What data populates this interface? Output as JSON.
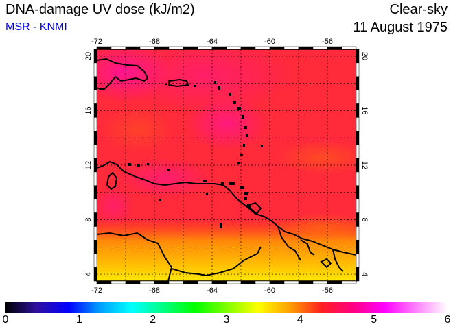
{
  "header": {
    "title": "DNA-damage UV dose (kJ/m2)",
    "source": "MSR - KNMI",
    "condition": "Clear-sky",
    "date": "11 August 1975"
  },
  "map": {
    "longitude_ticks": [
      "-72",
      "-68",
      "-64",
      "-60",
      "-56"
    ],
    "latitude_ticks": [
      "20",
      "16",
      "12",
      "8",
      "4"
    ],
    "lon_range": [
      -72,
      -54
    ],
    "lat_range": [
      3.5,
      20.5
    ]
  },
  "colorbar": {
    "labels": [
      "0",
      "1",
      "2",
      "3",
      "4",
      "5",
      "6"
    ],
    "range": [
      0,
      6
    ],
    "colors": [
      "#000000",
      "#3010a0",
      "#0000ff",
      "#00a0ff",
      "#00ffff",
      "#00ff80",
      "#00ff00",
      "#80ff00",
      "#ffff00",
      "#ffa000",
      "#ff2020",
      "#ff0080",
      "#ff00ff",
      "#ff80ff",
      "#ffffff"
    ]
  }
}
